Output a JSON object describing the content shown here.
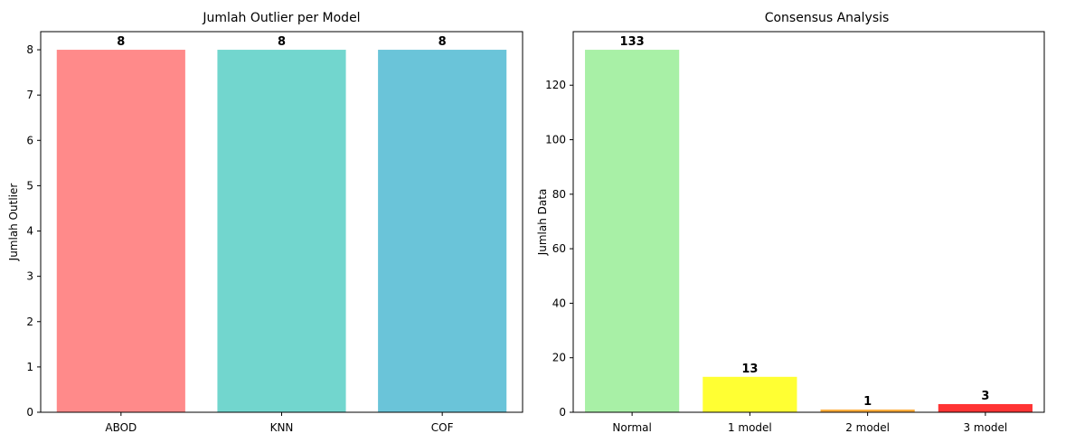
{
  "chart_data": [
    {
      "type": "bar",
      "title": "Jumlah Outlier per Model",
      "xlabel": "",
      "ylabel": "Jumlah Outlier",
      "categories": [
        "ABOD",
        "KNN",
        "COF"
      ],
      "values": [
        8,
        8,
        8
      ],
      "data_labels": [
        "8",
        "8",
        "8"
      ],
      "colors": [
        "#ff8a8a",
        "#72d6ce",
        "#6ac4d9"
      ],
      "ylim": [
        0,
        8.4
      ],
      "yticks": [
        0,
        1,
        2,
        3,
        4,
        5,
        6,
        7,
        8
      ],
      "ytick_labels": [
        "0",
        "1",
        "2",
        "3",
        "4",
        "5",
        "6",
        "7",
        "8"
      ],
      "grid": false,
      "legend": "none"
    },
    {
      "type": "bar",
      "title": "Consensus Analysis",
      "xlabel": "",
      "ylabel": "Jumlah Data",
      "categories": [
        "Normal",
        "1 model",
        "2 model",
        "3 model"
      ],
      "values": [
        133,
        13,
        1,
        3
      ],
      "data_labels": [
        "133",
        "13",
        "1",
        "3"
      ],
      "colors": [
        "#a8f0a6",
        "#ffff33",
        "#ffad3d",
        "#ff3434"
      ],
      "ylim": [
        0,
        139.65
      ],
      "yticks": [
        0,
        20,
        40,
        60,
        80,
        100,
        120
      ],
      "ytick_labels": [
        "0",
        "20",
        "40",
        "60",
        "80",
        "100",
        "120"
      ],
      "grid": false,
      "legend": "none"
    }
  ]
}
